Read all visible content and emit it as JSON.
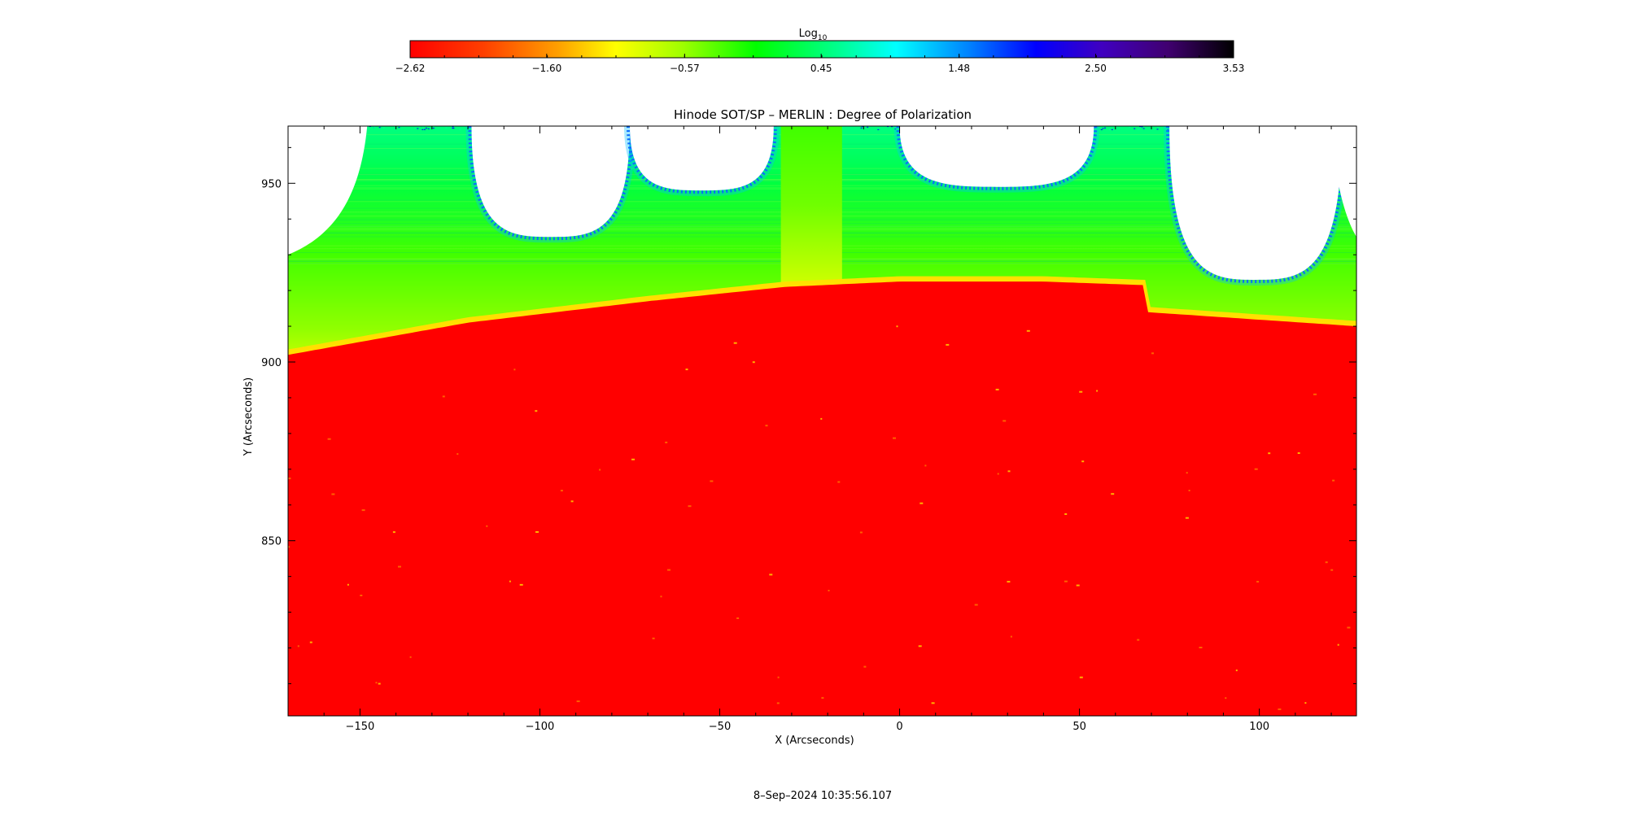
{
  "chart_data": {
    "type": "heatmap",
    "title": "Hinode SOT/SP – MERLIN : Degree of Polarization",
    "xlabel": "X (Arcseconds)",
    "ylabel": "Y (Arcseconds)",
    "timestamp": "8–Sep–2024 10:35:56.107",
    "xlim": [
      -170,
      127
    ],
    "ylim": [
      801,
      966
    ],
    "x_ticks": [
      -150,
      -100,
      -50,
      0,
      50,
      100
    ],
    "x_tick_labels": [
      "−150",
      "−100",
      "−50",
      "0",
      "50",
      "100"
    ],
    "y_ticks": [
      850,
      900,
      950
    ],
    "y_tick_labels": [
      "850",
      "900",
      "950"
    ],
    "colorbar": {
      "label_base": "Log",
      "label_sub": "10",
      "min": -2.62,
      "max": 3.53,
      "tick_values": [
        -2.62,
        -1.6,
        -0.57,
        0.45,
        1.48,
        2.5,
        3.53
      ],
      "tick_labels": [
        "−2.62",
        "−1.60",
        "−0.57",
        "0.45",
        "1.48",
        "2.50",
        "3.53"
      ],
      "colormap": [
        "#ff0000",
        "#ff7f00",
        "#ffff00",
        "#80ff00",
        "#00ff00",
        "#00ff80",
        "#00ffff",
        "#0080ff",
        "#0000ff",
        "#4000c0",
        "#400080",
        "#000000"
      ]
    },
    "limb": {
      "description_points_x": [
        -170,
        -120,
        -70,
        -32,
        0,
        40,
        68
      ],
      "description_points_y": [
        902,
        911,
        917,
        921,
        922.5,
        922.5,
        921.5
      ],
      "right_segment_x": [
        68,
        127
      ],
      "right_segment_y": [
        914,
        910
      ],
      "jump_x": 68
    },
    "hole_centers_x": [
      -97,
      -55,
      27,
      99
    ],
    "hole_bottom_y": [
      935,
      948,
      949,
      923
    ],
    "band_x": [
      -33,
      -16
    ],
    "colors": {
      "disk": "#ff0000",
      "limb_band": "#ffff00",
      "off_limb_low": "#80ff00",
      "off_limb_mid": "#00ff00",
      "off_limb_high": "#00ff80",
      "edge_noise": "#0000ff",
      "no_data": "#ffffff"
    }
  }
}
